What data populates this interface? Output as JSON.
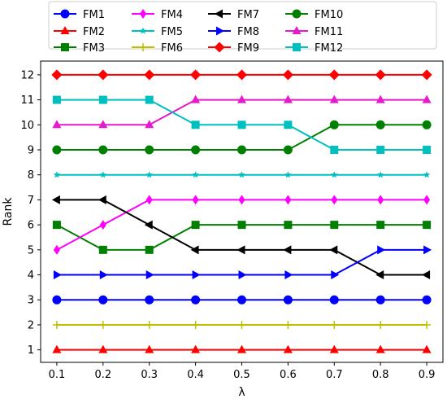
{
  "chart_data": {
    "type": "line",
    "title": "",
    "xlabel": "λ",
    "ylabel": "Rank",
    "x": [
      0.1,
      0.2,
      0.3,
      0.4,
      0.5,
      0.6,
      0.7,
      0.8,
      0.9
    ],
    "x_tick_labels": [
      "0.1",
      "0.2",
      "0.3",
      "0.4",
      "0.5",
      "0.6",
      "0.7",
      "0.8",
      "0.9"
    ],
    "y_ticks": [
      1,
      2,
      3,
      4,
      5,
      6,
      7,
      8,
      9,
      10,
      11,
      12
    ],
    "y_tick_labels": [
      "1",
      "2",
      "3",
      "4",
      "5",
      "6",
      "7",
      "8",
      "9",
      "10",
      "11",
      "12"
    ],
    "xlim": [
      0.065,
      0.935
    ],
    "ylim": [
      0.5,
      12.55
    ],
    "grid": false,
    "legend_position": "top",
    "series": [
      {
        "name": "FM1",
        "color": "#0000ff",
        "marker": "circle",
        "values": [
          3,
          3,
          3,
          3,
          3,
          3,
          3,
          3,
          3
        ]
      },
      {
        "name": "FM2",
        "color": "#ff0000",
        "marker": "triangle-up",
        "values": [
          1,
          1,
          1,
          1,
          1,
          1,
          1,
          1,
          1
        ]
      },
      {
        "name": "FM3",
        "color": "#008000",
        "marker": "square",
        "values": [
          6,
          5,
          5,
          6,
          6,
          6,
          6,
          6,
          6
        ]
      },
      {
        "name": "FM4",
        "color": "#ff00ff",
        "marker": "thin-diamond",
        "values": [
          5,
          6,
          7,
          7,
          7,
          7,
          7,
          7,
          7
        ]
      },
      {
        "name": "FM5",
        "color": "#00bfbf",
        "marker": "star",
        "values": [
          8,
          8,
          8,
          8,
          8,
          8,
          8,
          8,
          8
        ]
      },
      {
        "name": "FM6",
        "color": "#bfbf00",
        "marker": "plus",
        "values": [
          2,
          2,
          2,
          2,
          2,
          2,
          2,
          2,
          2
        ]
      },
      {
        "name": "FM7",
        "color": "#000000",
        "marker": "triangle-left",
        "values": [
          7,
          7,
          6,
          5,
          5,
          5,
          5,
          4,
          4
        ]
      },
      {
        "name": "FM8",
        "color": "#0000ff",
        "marker": "triangle-right",
        "values": [
          4,
          4,
          4,
          4,
          4,
          4,
          4,
          5,
          5
        ]
      },
      {
        "name": "FM9",
        "color": "#ff0000",
        "marker": "diamond",
        "values": [
          12,
          12,
          12,
          12,
          12,
          12,
          12,
          12,
          12
        ]
      },
      {
        "name": "FM10",
        "color": "#008000",
        "marker": "circle",
        "values": [
          9,
          9,
          9,
          9,
          9,
          9,
          10,
          10,
          10
        ]
      },
      {
        "name": "FM11",
        "color": "#e619cc",
        "marker": "triangle-up",
        "values": [
          10,
          10,
          10,
          11,
          11,
          11,
          11,
          11,
          11
        ]
      },
      {
        "name": "FM12",
        "color": "#00bfbf",
        "marker": "square",
        "values": [
          11,
          11,
          11,
          10,
          10,
          10,
          9,
          9,
          9
        ]
      }
    ]
  }
}
